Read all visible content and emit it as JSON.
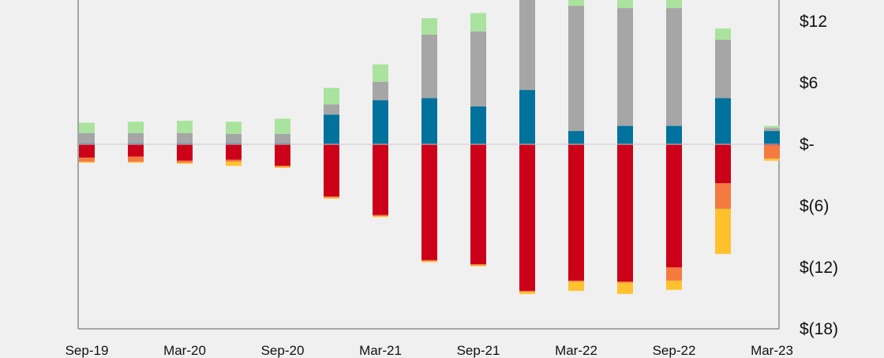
{
  "chart_data": {
    "type": "bar",
    "stacked": true,
    "title": "",
    "xlabel": "",
    "ylabel": "",
    "y_axis_position": "right",
    "ylim": [
      -18,
      14
    ],
    "yticks": [
      12,
      6,
      0,
      -6,
      -12,
      -18
    ],
    "ytick_labels": [
      "$12",
      "$6",
      "$-",
      "$(6)",
      "$(12)",
      "$(18)"
    ],
    "x_tick_labels": [
      "Sep-19",
      "Mar-20",
      "Sep-20",
      "Mar-21",
      "Sep-21",
      "Mar-22",
      "Sep-22",
      "Mar-23"
    ],
    "categories": [
      "Sep-19",
      "Dec-19",
      "Mar-20",
      "Jun-20",
      "Sep-20",
      "Dec-20",
      "Mar-21",
      "Jun-21",
      "Sep-21",
      "Dec-21",
      "Mar-22",
      "Jun-22",
      "Sep-22",
      "Dec-22",
      "Mar-23"
    ],
    "grid": false,
    "legend": "none",
    "series": [
      {
        "color": "#00729c",
        "values": [
          0.1,
          0.1,
          0.1,
          0.1,
          0.1,
          2.9,
          4.3,
          4.5,
          3.7,
          5.3,
          1.3,
          1.8,
          1.8,
          4.5,
          1.3
        ]
      },
      {
        "color": "#a6a6a6",
        "values": [
          1.0,
          1.0,
          1.0,
          0.9,
          0.9,
          1.0,
          1.8,
          6.2,
          7.3,
          9.4,
          12.2,
          11.5,
          11.5,
          5.7,
          0.3
        ]
      },
      {
        "color": "#a9e39e",
        "values": [
          1.0,
          1.1,
          1.2,
          1.2,
          1.5,
          1.6,
          1.7,
          1.6,
          1.8,
          1.7,
          1.6,
          1.6,
          1.6,
          1.1,
          0.2
        ]
      },
      {
        "color": "#cc0018",
        "values": [
          -1.3,
          -1.2,
          -1.6,
          -1.5,
          -2.1,
          -5.1,
          -6.9,
          -11.3,
          -11.7,
          -14.3,
          -13.3,
          -13.4,
          -12.0,
          -3.8,
          -0.1
        ]
      },
      {
        "color": "#f47a40",
        "values": [
          -0.4,
          -0.5,
          -0.2,
          -0.2,
          -0.1,
          -0.1,
          -0.1,
          -0.1,
          -0.1,
          -0.1,
          -0.1,
          -0.1,
          -1.3,
          -2.5,
          -1.3
        ]
      },
      {
        "color": "#ffc22e",
        "values": [
          -0.1,
          -0.1,
          -0.1,
          -0.4,
          -0.1,
          -0.1,
          -0.1,
          -0.1,
          -0.1,
          -0.2,
          -0.9,
          -1.1,
          -0.9,
          -4.4,
          -0.2
        ]
      }
    ]
  }
}
